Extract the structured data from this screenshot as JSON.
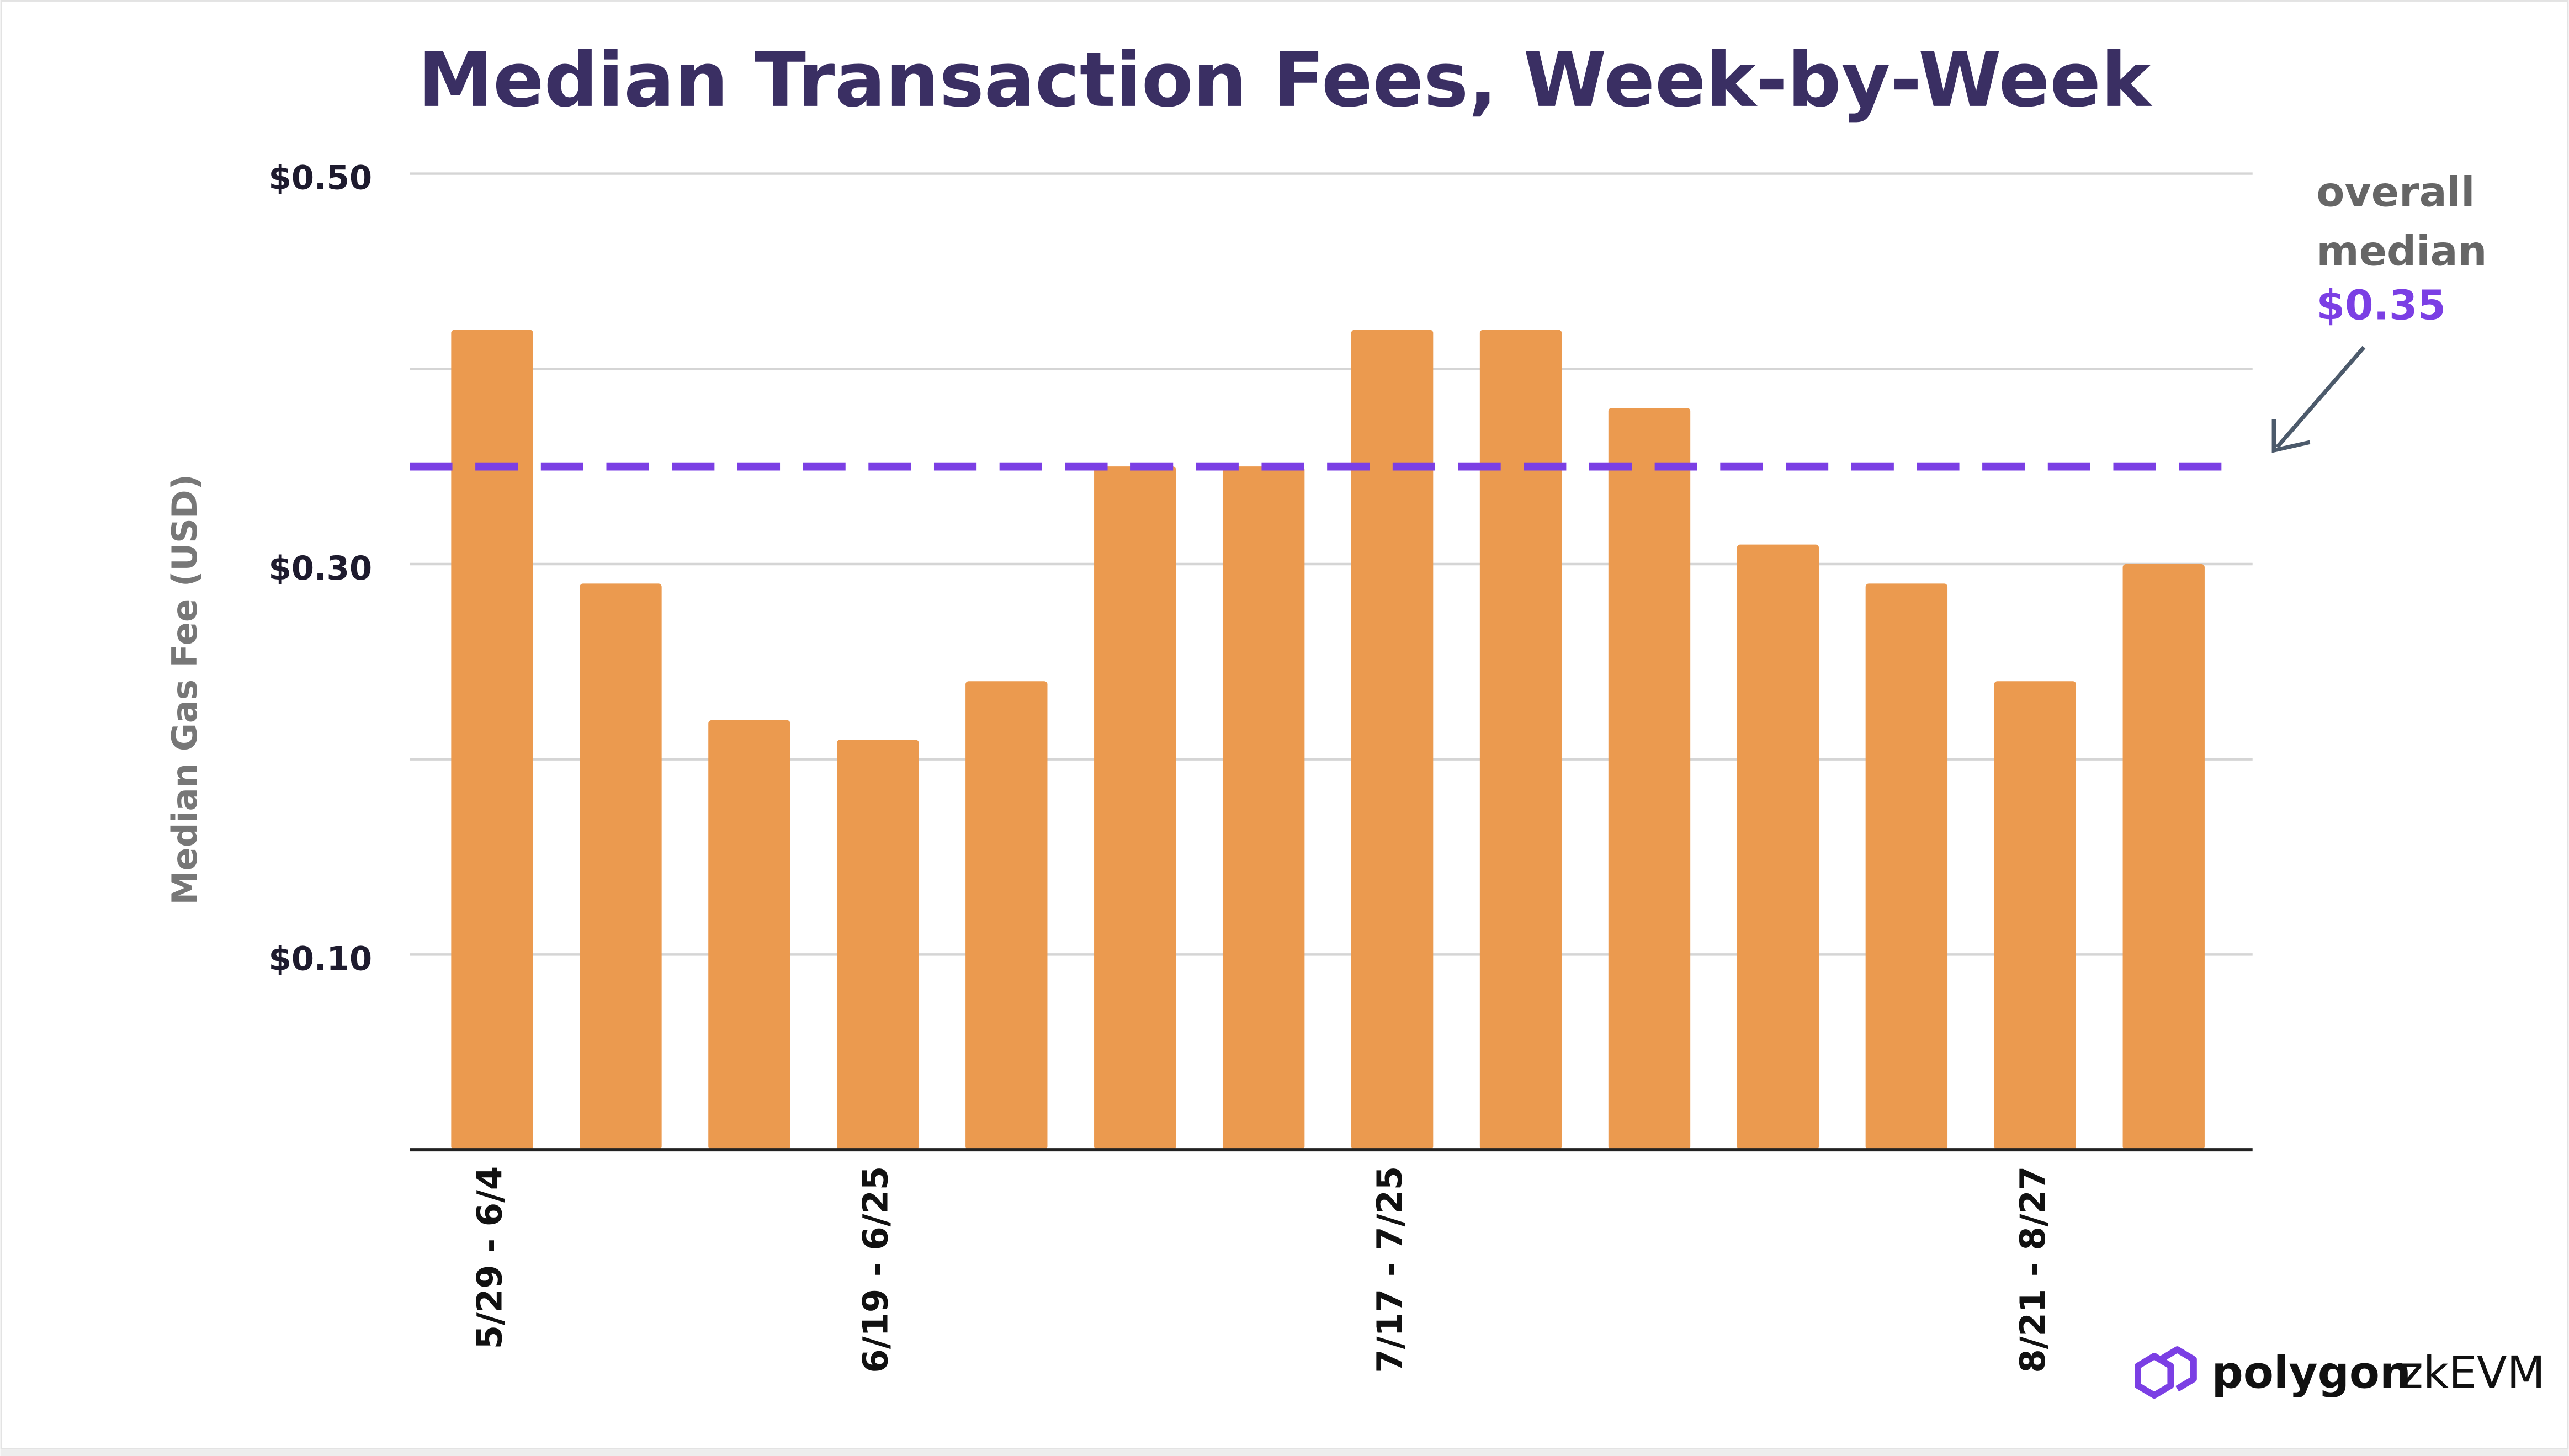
{
  "chart_data": {
    "type": "bar",
    "title": "Median Transaction Fees, Week-by-Week",
    "y_label": "Median Gas Fee (USD)",
    "categories": [
      "5/29 - 6/4",
      null,
      null,
      "6/19 - 6/25",
      null,
      null,
      null,
      "7/17 - 7/25",
      null,
      null,
      null,
      null,
      "8/21 - 8/27",
      null
    ],
    "values": [
      0.42,
      0.29,
      0.22,
      0.21,
      0.24,
      0.35,
      0.35,
      0.42,
      0.42,
      0.38,
      0.31,
      0.29,
      0.24,
      0.3
    ],
    "color": "#eb9a4f",
    "ylim": [
      0,
      0.5
    ],
    "yticks": [
      {
        "value": 0.1,
        "label": "$0.10"
      },
      {
        "value": 0.3,
        "label": "$0.30"
      },
      {
        "value": 0.5,
        "label": "$0.50"
      }
    ],
    "minor_gridlines": [
      0.2,
      0.4
    ],
    "grid": true,
    "median_line": {
      "value": 0.35,
      "label": [
        "overall",
        "median"
      ],
      "value_label": "$0.35",
      "color": "#7b3fe4"
    },
    "logo": {
      "brand": "polygon",
      "product": "zkEVM"
    }
  }
}
